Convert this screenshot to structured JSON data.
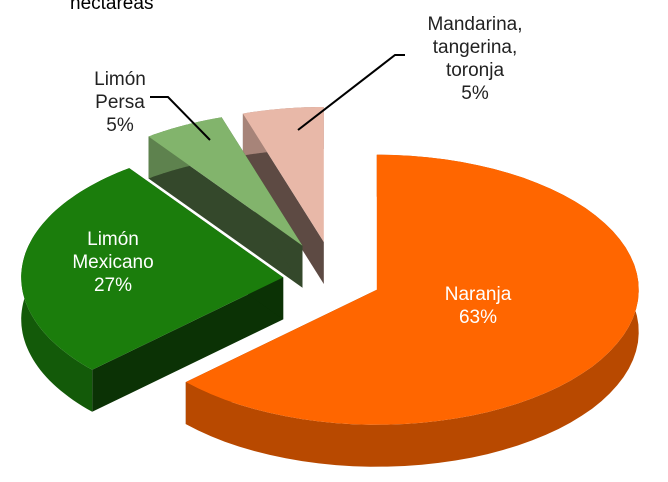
{
  "chart_data": {
    "type": "pie3d",
    "title": "hectareas",
    "categories": [
      "Naranja",
      "Limón Mexicano",
      "Limón Persa",
      "Mandarina, tangerina, toronja"
    ],
    "values": [
      63,
      27,
      5,
      5
    ],
    "value_labels": [
      "63%",
      "27%",
      "5%",
      "5%"
    ],
    "colors": [
      "#ff6600",
      "#1b7d0c",
      "#82b46c",
      "#e8b8a8"
    ]
  }
}
